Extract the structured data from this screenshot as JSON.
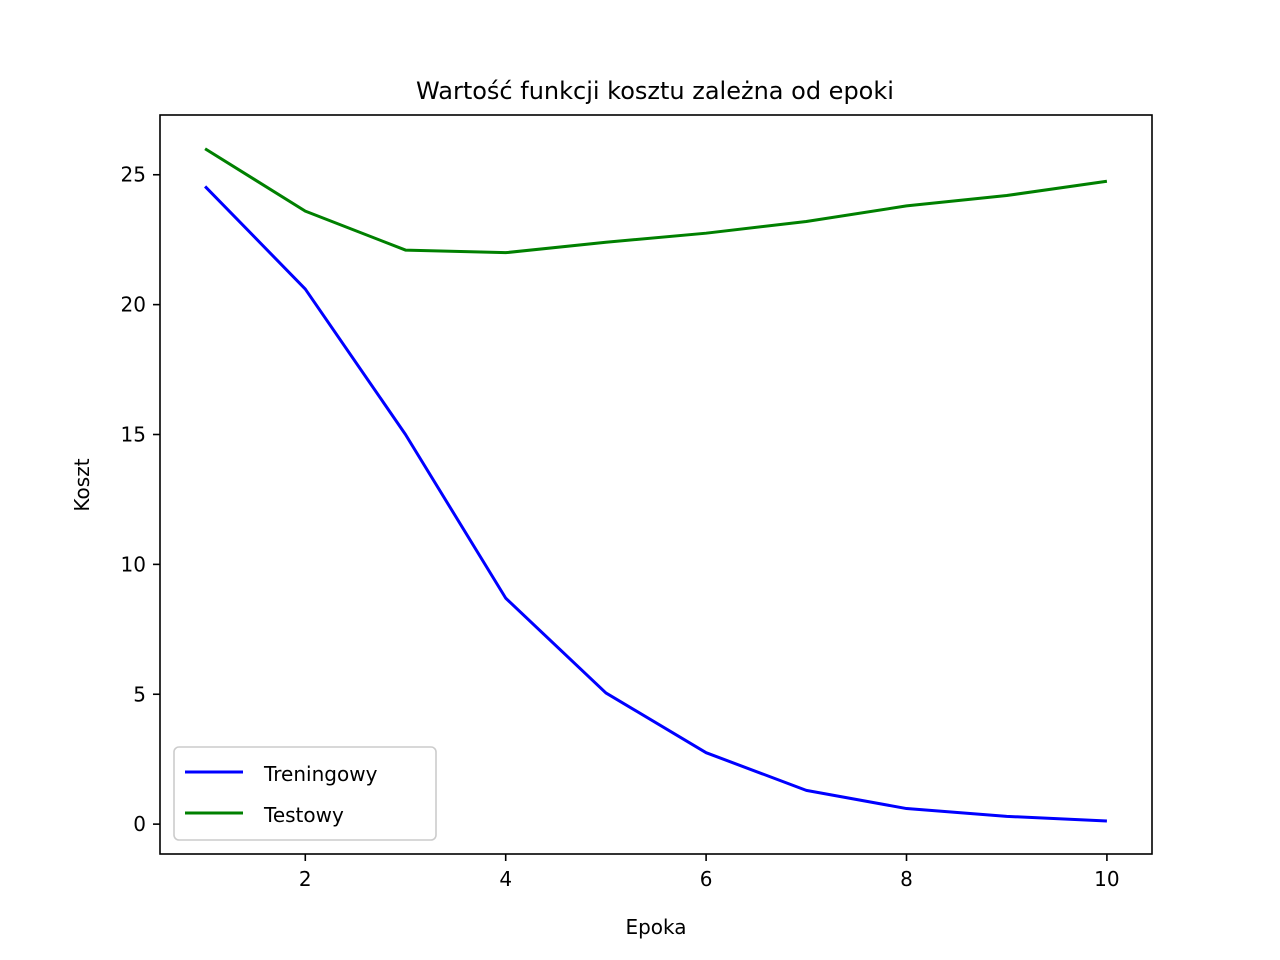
{
  "chart_data": {
    "type": "line",
    "title": "Wartość funkcji kosztu zależna od epoki",
    "xlabel": "Epoka",
    "ylabel": "Koszt",
    "x": [
      1,
      2,
      3,
      4,
      5,
      6,
      7,
      8,
      9,
      10
    ],
    "xlim": [
      0.55,
      10.45
    ],
    "ylim": [
      -1.15,
      27.3
    ],
    "xticks": [
      2,
      4,
      6,
      8,
      10
    ],
    "yticks": [
      0,
      5,
      10,
      15,
      20,
      25
    ],
    "grid": false,
    "legend_position": "lower-left",
    "series": [
      {
        "name": "Treningowy",
        "color": "#0000ff",
        "values": [
          24.55,
          20.6,
          15.0,
          8.7,
          5.05,
          2.75,
          1.3,
          0.6,
          0.3,
          0.12
        ]
      },
      {
        "name": "Testowy",
        "color": "#008000",
        "values": [
          26.0,
          23.6,
          22.1,
          22.0,
          22.4,
          22.75,
          23.2,
          23.8,
          24.2,
          24.75
        ]
      }
    ]
  }
}
